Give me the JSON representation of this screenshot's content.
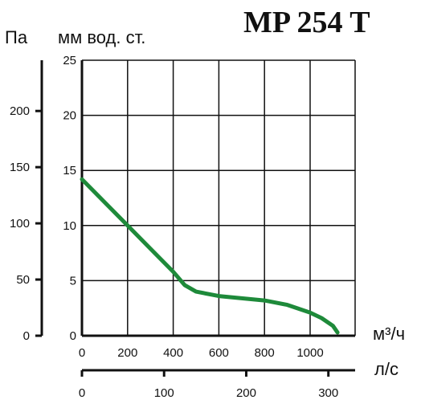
{
  "chart_data": {
    "type": "line",
    "title": "MP 254 T",
    "left_unit_pa": "Па",
    "left_unit_mm": "мм вод. ст.",
    "x_unit_main": "м³/ч",
    "x_unit_secondary": "л/с",
    "xlim": [
      0,
      1200
    ],
    "ylim": [
      0,
      25
    ],
    "x_ticks": [
      0,
      200,
      400,
      600,
      800,
      1000
    ],
    "y_ticks": [
      0,
      5,
      10,
      15,
      20,
      25
    ],
    "pa_ticks": [
      0,
      50,
      100,
      150,
      200
    ],
    "ls_ticks": [
      0,
      100,
      200,
      300
    ],
    "series": [
      {
        "x": [
          0,
          100,
          200,
          300,
          400,
          450,
          500,
          600,
          700,
          800,
          900,
          1000,
          1050,
          1100,
          1120
        ],
        "y": [
          14.2,
          12.1,
          10.0,
          7.9,
          5.8,
          4.6,
          4.0,
          3.6,
          3.4,
          3.2,
          2.8,
          2.1,
          1.6,
          0.9,
          0.3
        ]
      }
    ],
    "line_color": "#1e8a3a",
    "grid": true
  }
}
